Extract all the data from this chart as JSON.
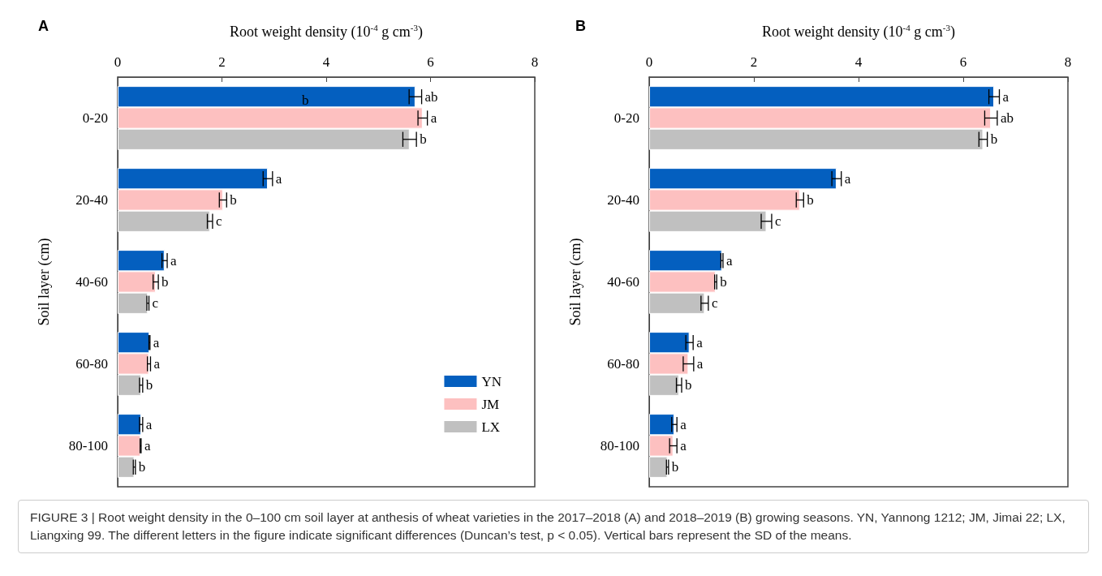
{
  "chart_data": [
    {
      "type": "bar",
      "orientation": "horizontal",
      "title": "A",
      "xlabel": "Root weight density (10$^{-4}$ g cm$^{-3}$)",
      "ylabel": "Soil layer (cm)",
      "categories": [
        "0-20",
        "20-40",
        "40-60",
        "60-80",
        "80-100"
      ],
      "series": [
        {
          "name": "YN",
          "color": "#045fbf",
          "values": [
            5.71,
            2.88,
            0.9,
            0.61,
            0.45
          ],
          "errors": [
            0.12,
            0.09,
            0.05,
            0.01,
            0.03
          ],
          "value_labels": [
            "ab",
            "a",
            "a",
            "a",
            "a"
          ]
        },
        {
          "name": "JM",
          "color": "#fdc0c0",
          "values": [
            5.85,
            2.02,
            0.73,
            0.6,
            0.44
          ],
          "errors": [
            0.09,
            0.07,
            0.05,
            0.03,
            0.01
          ],
          "value_labels": [
            "a",
            "b",
            "b",
            "a",
            "a"
          ]
        },
        {
          "name": "LX",
          "color": "#c0c0c0",
          "values": [
            5.6,
            1.77,
            0.58,
            0.45,
            0.32
          ],
          "errors": [
            0.13,
            0.05,
            0.02,
            0.03,
            0.02
          ],
          "value_labels": [
            "b",
            "c",
            "c",
            "b",
            "b"
          ]
        }
      ],
      "xlim": [
        0,
        8
      ],
      "xticks": [
        0,
        2,
        4,
        6,
        8
      ],
      "grid": false,
      "legend": "bottom right",
      "annotations": [
        "b",
        "FIGURE 3 | Root weight density in the 0–100 cm soil layer at anthesis of wheat varieties in the 2017–2018 (A) and 2018–2019 (B) growing seasons. YN, Yannong 1212; JM, Jimai 22; LX, Liangxing 99. The different letters in the figure indicate significant differences (Duncan’s test, p < 0.05). Vertical bars represent the SD of the means."
      ]
    },
    {
      "type": "bar",
      "orientation": "horizontal",
      "title": "B",
      "xlabel": "Root weight density (10$^{-4}$ g cm$^{-3}$)",
      "ylabel": "Soil layer (cm)",
      "categories": [
        "0-20",
        "20-40",
        "40-60",
        "60-80",
        "80-100"
      ],
      "series": [
        {
          "color": "#045fbf",
          "values": [
            6.59,
            3.58,
            1.39,
            0.77,
            0.48
          ],
          "errors": [
            0.1,
            0.09,
            0.02,
            0.07,
            0.05
          ],
          "value_labels": [
            "a",
            "a",
            "a",
            "a",
            "a"
          ]
        },
        {
          "color": "#fdc0c0",
          "values": [
            6.53,
            2.88,
            1.27,
            0.75,
            0.46
          ],
          "errors": [
            0.12,
            0.07,
            0.02,
            0.1,
            0.07
          ],
          "value_labels": [
            "ab",
            "b",
            "b",
            "a",
            "a"
          ]
        },
        {
          "color": "#c0c0c0",
          "values": [
            6.38,
            2.24,
            1.06,
            0.57,
            0.35
          ],
          "errors": [
            0.08,
            0.1,
            0.07,
            0.05,
            0.02
          ],
          "value_labels": [
            "b",
            "c",
            "c",
            "b",
            "b"
          ]
        }
      ],
      "xlim": [
        0,
        8
      ],
      "xticks": [
        0,
        2,
        4,
        6,
        8
      ],
      "grid": false,
      "legend": false
    }
  ]
}
